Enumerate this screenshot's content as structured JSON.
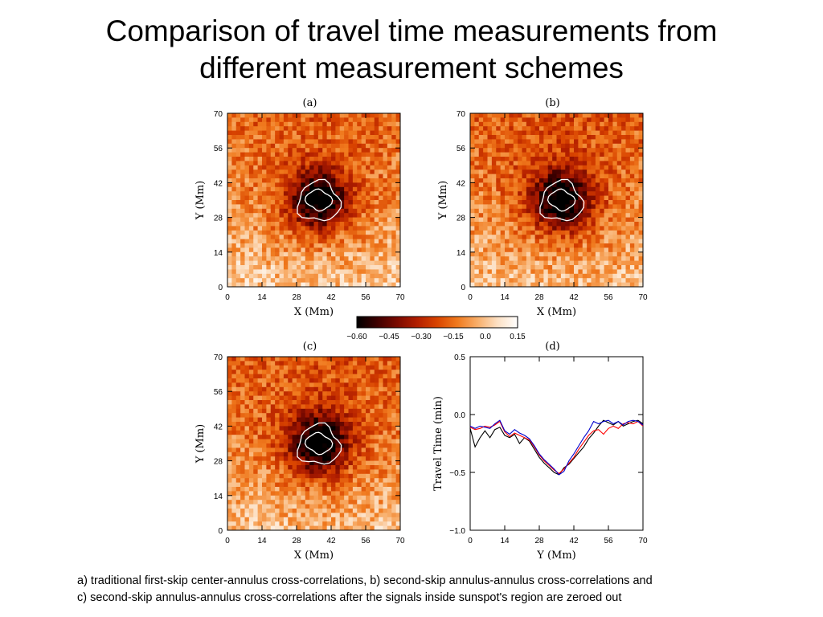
{
  "title": {
    "line1": "Comparison of travel time measurements from",
    "line2": "different measurement schemes"
  },
  "colors": {
    "colormap": [
      "#000000",
      "#3d0000",
      "#7a0a00",
      "#b21e00",
      "#d94400",
      "#f07a1e",
      "#f8ae6a",
      "#fce0c4",
      "#ffffff"
    ],
    "contour": "#ffffff",
    "series_black": "#000000",
    "series_red": "#ff0000",
    "series_blue": "#0000cc"
  },
  "colorbar": {
    "min": -0.6,
    "max": 0.15,
    "ticks": [
      "-0.60",
      "-0.45",
      "-0.30",
      "-0.15",
      "0.0",
      "0.15"
    ]
  },
  "caption": {
    "line1": "a) traditional first-skip center-annulus cross-correlations, b) second-skip annulus-annulus cross-correlations and",
    "line2": "c) second-skip annulus-annulus cross-correlations after the signals inside sunspot's region are zeroed out"
  },
  "chart_data": [
    {
      "type": "heatmap",
      "label": "(a)",
      "xlabel": "X (Mm)",
      "ylabel": "Y (Mm)",
      "xlim": [
        0,
        70
      ],
      "ylim": [
        0,
        70
      ],
      "xticks": [
        "0",
        "14",
        "28",
        "42",
        "56",
        "70"
      ],
      "yticks": [
        "0",
        "14",
        "28",
        "42",
        "56",
        "70"
      ],
      "spot_center": [
        37,
        35
      ],
      "spot_min": -0.58,
      "background": 0.02,
      "contours": "white contours around sunspot umbra and penumbra"
    },
    {
      "type": "heatmap",
      "label": "(b)",
      "xlabel": "X (Mm)",
      "ylabel": "Y (Mm)",
      "xlim": [
        0,
        70
      ],
      "ylim": [
        0,
        70
      ],
      "xticks": [
        "0",
        "14",
        "28",
        "42",
        "56",
        "70"
      ],
      "yticks": [
        "0",
        "14",
        "28",
        "42",
        "56",
        "70"
      ],
      "spot_center": [
        37,
        35
      ],
      "spot_min": -0.6,
      "background": 0.0,
      "contours": "white contours around sunspot umbra and penumbra"
    },
    {
      "type": "heatmap",
      "label": "(c)",
      "xlabel": "X (Mm)",
      "ylabel": "Y (Mm)",
      "xlim": [
        0,
        70
      ],
      "ylim": [
        0,
        70
      ],
      "xticks": [
        "0",
        "14",
        "28",
        "42",
        "56",
        "70"
      ],
      "yticks": [
        "0",
        "14",
        "28",
        "42",
        "56",
        "70"
      ],
      "spot_center": [
        37,
        35
      ],
      "spot_min": -0.6,
      "background": 0.0,
      "contours": "white contours around sunspot umbra and penumbra"
    },
    {
      "type": "line",
      "label": "(d)",
      "xlabel": "Y (Mm)",
      "ylabel": "Travel Time (min)",
      "xlim": [
        0,
        70
      ],
      "ylim": [
        -1.0,
        0.5
      ],
      "xticks": [
        "0",
        "14",
        "28",
        "42",
        "56",
        "70"
      ],
      "yticks": [
        "0.5",
        "0.0",
        "−0.5",
        "−1.0"
      ],
      "x": [
        0,
        2,
        4,
        6,
        8,
        10,
        12,
        14,
        16,
        18,
        20,
        22,
        24,
        26,
        28,
        30,
        32,
        34,
        36,
        38,
        40,
        42,
        44,
        46,
        48,
        50,
        52,
        54,
        56,
        58,
        60,
        62,
        64,
        66,
        68,
        70
      ],
      "series": [
        {
          "color": "#000000",
          "values": [
            -0.12,
            -0.28,
            -0.2,
            -0.14,
            -0.2,
            -0.13,
            -0.11,
            -0.18,
            -0.2,
            -0.17,
            -0.25,
            -0.2,
            -0.23,
            -0.3,
            -0.37,
            -0.42,
            -0.46,
            -0.5,
            -0.52,
            -0.46,
            -0.43,
            -0.38,
            -0.33,
            -0.28,
            -0.21,
            -0.16,
            -0.1,
            -0.05,
            -0.07,
            -0.09,
            -0.06,
            -0.1,
            -0.08,
            -0.06,
            -0.05,
            -0.08
          ]
        },
        {
          "color": "#ff0000",
          "values": [
            -0.11,
            -0.13,
            -0.12,
            -0.1,
            -0.11,
            -0.09,
            -0.06,
            -0.15,
            -0.19,
            -0.16,
            -0.18,
            -0.2,
            -0.22,
            -0.28,
            -0.35,
            -0.4,
            -0.44,
            -0.48,
            -0.51,
            -0.47,
            -0.42,
            -0.37,
            -0.3,
            -0.24,
            -0.18,
            -0.14,
            -0.13,
            -0.17,
            -0.12,
            -0.1,
            -0.12,
            -0.08,
            -0.07,
            -0.08,
            -0.06,
            -0.1
          ]
        },
        {
          "color": "#0000cc",
          "values": [
            -0.1,
            -0.12,
            -0.1,
            -0.11,
            -0.12,
            -0.08,
            -0.05,
            -0.14,
            -0.17,
            -0.13,
            -0.16,
            -0.18,
            -0.21,
            -0.27,
            -0.34,
            -0.39,
            -0.43,
            -0.47,
            -0.52,
            -0.49,
            -0.4,
            -0.34,
            -0.27,
            -0.2,
            -0.14,
            -0.06,
            -0.08,
            -0.06,
            -0.05,
            -0.08,
            -0.06,
            -0.09,
            -0.06,
            -0.05,
            -0.06,
            -0.09
          ]
        }
      ]
    }
  ]
}
